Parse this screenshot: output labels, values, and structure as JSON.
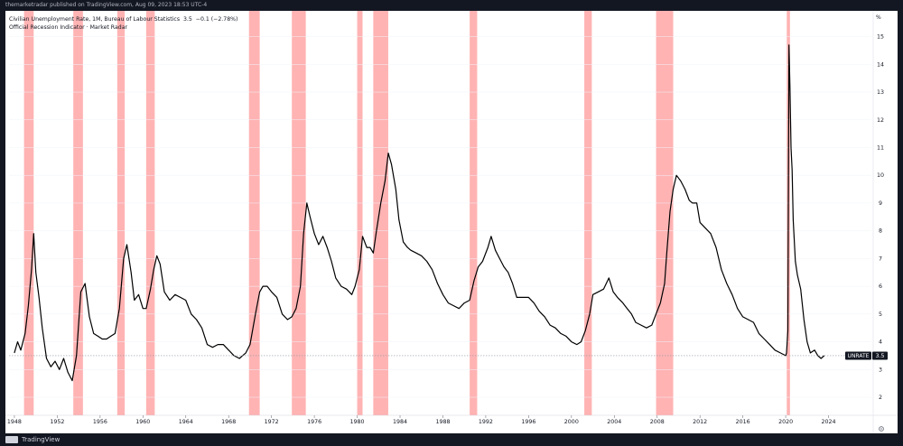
{
  "header": {
    "publisher": "themarketradar published on TradingView.com, Aug 09, 2023 18:53 UTC-4"
  },
  "legend": {
    "series_title": "Civilian Unemployment Rate, 1M, Bureau of Labour Statistics",
    "last": "3.5",
    "change": "−0.1 (−2.78%)",
    "indicator": "Official Recession Indicator · Market Radar"
  },
  "axis": {
    "unit": "%"
  },
  "price_tag": {
    "symbol": "UNRATE",
    "value": "3.5"
  },
  "footer": {
    "brand": "TradingView"
  },
  "colors": {
    "line": "#000000",
    "recession": "#ffb3b3",
    "background": "#ffffff",
    "chrome": "#131722",
    "dashed": "#9598a1"
  },
  "chart_data": {
    "type": "line",
    "x_unit": "year",
    "xlim": [
      1947.5,
      2028.0
    ],
    "ylim": [
      1.35,
      15.8
    ],
    "x_ticks": [
      1948,
      1952,
      1956,
      1960,
      1964,
      1968,
      1972,
      1976,
      1980,
      1984,
      1988,
      1992,
      1996,
      2000,
      2004,
      2008,
      2012,
      2016,
      2020,
      2024
    ],
    "y_ticks": [
      2,
      3,
      4,
      5,
      6,
      7,
      8,
      9,
      10,
      11,
      12,
      13,
      14,
      15
    ],
    "recessions": [
      [
        1948.9,
        1949.8
      ],
      [
        1953.5,
        1954.4
      ],
      [
        1957.6,
        1958.3
      ],
      [
        1960.3,
        1961.1
      ],
      [
        1969.9,
        1970.9
      ],
      [
        1973.9,
        1975.2
      ],
      [
        1980.0,
        1980.5
      ],
      [
        1981.5,
        1982.9
      ],
      [
        1990.5,
        1991.2
      ],
      [
        2001.2,
        2001.9
      ],
      [
        2007.9,
        2009.5
      ],
      [
        2020.1,
        2020.4
      ]
    ],
    "series": [
      {
        "name": "UNRATE",
        "points": [
          [
            1948.0,
            3.6
          ],
          [
            1948.3,
            4.0
          ],
          [
            1948.6,
            3.7
          ],
          [
            1949.0,
            4.3
          ],
          [
            1949.3,
            5.3
          ],
          [
            1949.6,
            6.6
          ],
          [
            1949.8,
            7.9
          ],
          [
            1950.0,
            6.5
          ],
          [
            1950.3,
            5.6
          ],
          [
            1950.6,
            4.5
          ],
          [
            1951.0,
            3.4
          ],
          [
            1951.4,
            3.1
          ],
          [
            1951.8,
            3.3
          ],
          [
            1952.2,
            3.0
          ],
          [
            1952.6,
            3.4
          ],
          [
            1953.0,
            2.9
          ],
          [
            1953.4,
            2.6
          ],
          [
            1953.8,
            3.5
          ],
          [
            1954.2,
            5.8
          ],
          [
            1954.6,
            6.1
          ],
          [
            1955.0,
            4.9
          ],
          [
            1955.4,
            4.3
          ],
          [
            1955.8,
            4.2
          ],
          [
            1956.2,
            4.1
          ],
          [
            1956.6,
            4.1
          ],
          [
            1957.0,
            4.2
          ],
          [
            1957.4,
            4.3
          ],
          [
            1957.8,
            5.2
          ],
          [
            1958.2,
            7.0
          ],
          [
            1958.5,
            7.5
          ],
          [
            1958.9,
            6.5
          ],
          [
            1959.2,
            5.5
          ],
          [
            1959.6,
            5.7
          ],
          [
            1960.0,
            5.2
          ],
          [
            1960.3,
            5.2
          ],
          [
            1960.7,
            5.9
          ],
          [
            1961.0,
            6.6
          ],
          [
            1961.3,
            7.1
          ],
          [
            1961.6,
            6.8
          ],
          [
            1962.0,
            5.8
          ],
          [
            1962.5,
            5.5
          ],
          [
            1963.0,
            5.7
          ],
          [
            1963.5,
            5.6
          ],
          [
            1964.0,
            5.5
          ],
          [
            1964.5,
            5.0
          ],
          [
            1965.0,
            4.8
          ],
          [
            1965.5,
            4.5
          ],
          [
            1966.0,
            3.9
          ],
          [
            1966.5,
            3.8
          ],
          [
            1967.0,
            3.9
          ],
          [
            1967.5,
            3.9
          ],
          [
            1968.0,
            3.7
          ],
          [
            1968.5,
            3.5
          ],
          [
            1969.0,
            3.4
          ],
          [
            1969.6,
            3.6
          ],
          [
            1970.0,
            3.9
          ],
          [
            1970.5,
            5.0
          ],
          [
            1970.9,
            5.8
          ],
          [
            1971.2,
            6.0
          ],
          [
            1971.6,
            6.0
          ],
          [
            1972.0,
            5.8
          ],
          [
            1972.5,
            5.6
          ],
          [
            1973.0,
            5.0
          ],
          [
            1973.5,
            4.8
          ],
          [
            1973.9,
            4.9
          ],
          [
            1974.3,
            5.2
          ],
          [
            1974.7,
            6.0
          ],
          [
            1975.0,
            7.9
          ],
          [
            1975.3,
            9.0
          ],
          [
            1975.6,
            8.5
          ],
          [
            1976.0,
            7.9
          ],
          [
            1976.4,
            7.5
          ],
          [
            1976.8,
            7.8
          ],
          [
            1977.2,
            7.4
          ],
          [
            1977.6,
            6.9
          ],
          [
            1978.0,
            6.3
          ],
          [
            1978.5,
            6.0
          ],
          [
            1979.0,
            5.9
          ],
          [
            1979.5,
            5.7
          ],
          [
            1979.8,
            6.0
          ],
          [
            1980.2,
            6.6
          ],
          [
            1980.5,
            7.8
          ],
          [
            1980.9,
            7.4
          ],
          [
            1981.2,
            7.4
          ],
          [
            1981.5,
            7.2
          ],
          [
            1981.8,
            8.0
          ],
          [
            1982.2,
            9.0
          ],
          [
            1982.6,
            9.8
          ],
          [
            1982.9,
            10.8
          ],
          [
            1983.2,
            10.4
          ],
          [
            1983.6,
            9.5
          ],
          [
            1983.9,
            8.4
          ],
          [
            1984.3,
            7.6
          ],
          [
            1984.7,
            7.4
          ],
          [
            1985.0,
            7.3
          ],
          [
            1985.5,
            7.2
          ],
          [
            1986.0,
            7.1
          ],
          [
            1986.5,
            6.9
          ],
          [
            1987.0,
            6.6
          ],
          [
            1987.5,
            6.1
          ],
          [
            1988.0,
            5.7
          ],
          [
            1988.5,
            5.4
          ],
          [
            1989.0,
            5.3
          ],
          [
            1989.5,
            5.2
          ],
          [
            1990.0,
            5.4
          ],
          [
            1990.5,
            5.5
          ],
          [
            1990.9,
            6.2
          ],
          [
            1991.3,
            6.7
          ],
          [
            1991.7,
            6.9
          ],
          [
            1992.2,
            7.4
          ],
          [
            1992.5,
            7.8
          ],
          [
            1992.9,
            7.3
          ],
          [
            1993.3,
            7.0
          ],
          [
            1993.7,
            6.7
          ],
          [
            1994.1,
            6.5
          ],
          [
            1994.5,
            6.1
          ],
          [
            1994.9,
            5.6
          ],
          [
            1995.3,
            5.6
          ],
          [
            1995.7,
            5.6
          ],
          [
            1996.0,
            5.6
          ],
          [
            1996.5,
            5.4
          ],
          [
            1997.0,
            5.1
          ],
          [
            1997.5,
            4.9
          ],
          [
            1998.0,
            4.6
          ],
          [
            1998.5,
            4.5
          ],
          [
            1999.0,
            4.3
          ],
          [
            1999.5,
            4.2
          ],
          [
            2000.0,
            4.0
          ],
          [
            2000.5,
            3.9
          ],
          [
            2000.9,
            4.0
          ],
          [
            2001.3,
            4.4
          ],
          [
            2001.7,
            5.0
          ],
          [
            2002.0,
            5.7
          ],
          [
            2002.5,
            5.8
          ],
          [
            2003.0,
            5.9
          ],
          [
            2003.5,
            6.3
          ],
          [
            2003.9,
            5.8
          ],
          [
            2004.3,
            5.6
          ],
          [
            2004.8,
            5.4
          ],
          [
            2005.2,
            5.2
          ],
          [
            2005.6,
            5.0
          ],
          [
            2006.0,
            4.7
          ],
          [
            2006.5,
            4.6
          ],
          [
            2007.0,
            4.5
          ],
          [
            2007.5,
            4.6
          ],
          [
            2007.9,
            5.0
          ],
          [
            2008.3,
            5.4
          ],
          [
            2008.7,
            6.1
          ],
          [
            2008.9,
            7.2
          ],
          [
            2009.2,
            8.7
          ],
          [
            2009.5,
            9.5
          ],
          [
            2009.8,
            10.0
          ],
          [
            2010.2,
            9.8
          ],
          [
            2010.6,
            9.5
          ],
          [
            2011.0,
            9.1
          ],
          [
            2011.3,
            9.0
          ],
          [
            2011.7,
            9.0
          ],
          [
            2012.0,
            8.3
          ],
          [
            2012.5,
            8.1
          ],
          [
            2013.0,
            7.9
          ],
          [
            2013.5,
            7.4
          ],
          [
            2014.0,
            6.6
          ],
          [
            2014.5,
            6.1
          ],
          [
            2015.0,
            5.7
          ],
          [
            2015.5,
            5.2
          ],
          [
            2016.0,
            4.9
          ],
          [
            2016.5,
            4.8
          ],
          [
            2017.0,
            4.7
          ],
          [
            2017.5,
            4.3
          ],
          [
            2018.0,
            4.1
          ],
          [
            2018.5,
            3.9
          ],
          [
            2019.0,
            3.7
          ],
          [
            2019.5,
            3.6
          ],
          [
            2020.0,
            3.5
          ],
          [
            2020.08,
            3.6
          ],
          [
            2020.2,
            4.4
          ],
          [
            2020.3,
            14.7
          ],
          [
            2020.4,
            13.2
          ],
          [
            2020.5,
            11.0
          ],
          [
            2020.6,
            10.2
          ],
          [
            2020.7,
            8.4
          ],
          [
            2020.9,
            6.9
          ],
          [
            2021.1,
            6.4
          ],
          [
            2021.4,
            5.9
          ],
          [
            2021.7,
            4.8
          ],
          [
            2022.0,
            4.0
          ],
          [
            2022.3,
            3.6
          ],
          [
            2022.7,
            3.7
          ],
          [
            2023.0,
            3.5
          ],
          [
            2023.3,
            3.4
          ],
          [
            2023.6,
            3.5
          ]
        ]
      }
    ]
  }
}
